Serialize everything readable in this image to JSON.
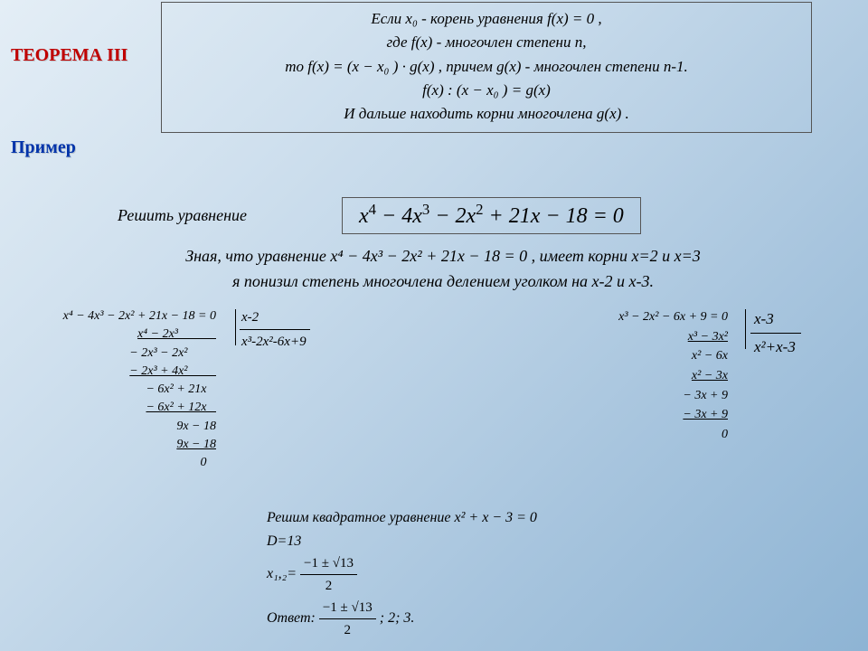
{
  "labels": {
    "theorem": "ТЕОРЕМА III",
    "example": "Пример",
    "solve": "Решить уравнение"
  },
  "theorem": {
    "line1": "Если x₀ - корень уравнения f(x) = 0 ,",
    "line2": "где f(x) - многочлен степени n,",
    "line3": "то f(x) = (x − x₀ ) · g(x) , причем g(x) - многочлен степени n-1.",
    "line4": "f(x) : (x − x₀ ) = g(x)",
    "line5": "И дальше находить корни многочлена g(x) ."
  },
  "equation_box": "x⁴ − 4x³ − 2x² + 21x − 18 = 0",
  "knowing": {
    "line1": "Зная, что уравнение x⁴ − 4x³ − 2x² + 21x − 18 = 0  ,   имеет корни x=2 и x=3",
    "line2": "я понизил степень многочлена делением уголком на x-2 и x-3."
  },
  "div1": {
    "dividend": "x⁴ − 4x³ − 2x² + 21x − 18 = 0",
    "divisor": "x-2",
    "quotient": "x³-2x²-6x+9",
    "steps": [
      "x⁴ − 2x³            ",
      "− 2x³ − 2x²         ",
      "− 2x³ + 4x²         ",
      "− 6x² + 21x   ",
      "− 6x² + 12x   ",
      "9x − 18",
      "9x − 18",
      "0   "
    ]
  },
  "div2": {
    "dividend": "x³ − 2x² − 6x + 9 = 0",
    "divisor": "x-3",
    "quotient": "x²+x-3",
    "steps": [
      "x³ − 3x²         ",
      "x² − 6x   ",
      "x² − 3x   ",
      "− 3x + 9",
      "− 3x + 9",
      "0   "
    ]
  },
  "quad": {
    "line1": "Решим квадратное уравнение x² + x − 3 = 0",
    "d": "D=13",
    "xprefix": "x₁,₂= ",
    "frac1_num": "−1 ± √13",
    "frac1_den": "2",
    "answer_label": "Ответ: ",
    "frac2_num": "−1 ± √13",
    "frac2_den": "2",
    "answer_tail": " ; 2; 3."
  },
  "colors": {
    "theorem_label": "#c00000",
    "example_label": "#0033aa",
    "box_border": "#555555",
    "bg_grad_start": "#e4eef6",
    "bg_grad_end": "#8eb4d4"
  },
  "fonts": {
    "body_family": "Times New Roman",
    "label_size_pt": 20,
    "theorem_size_pt": 17,
    "eqbox_size_pt": 24,
    "longdiv_size_pt": 14
  }
}
